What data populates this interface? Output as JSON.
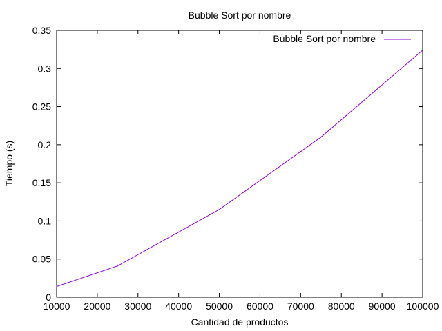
{
  "chart_data": {
    "type": "line",
    "title": "Bubble Sort por nombre",
    "xlabel": "Cantidad de productos",
    "ylabel": "Tiempo (s)",
    "xlim": [
      10000,
      100000
    ],
    "ylim": [
      0,
      0.35
    ],
    "x_ticks": [
      10000,
      20000,
      30000,
      40000,
      50000,
      60000,
      70000,
      80000,
      90000,
      100000
    ],
    "x_tick_labels": [
      "10000",
      "20000",
      "30000",
      "40000",
      "50000",
      "60000",
      "70000",
      "80000",
      "90000",
      "100000"
    ],
    "y_ticks": [
      0,
      0.05,
      0.1,
      0.15,
      0.2,
      0.25,
      0.3,
      0.35
    ],
    "y_tick_labels": [
      "0",
      "0.05",
      "0.1",
      "0.15",
      "0.2",
      "0.25",
      "0.3",
      "0.35"
    ],
    "grid": false,
    "legend_position": "top-right",
    "series": [
      {
        "name": "Bubble Sort por nombre",
        "color": "#9400d3",
        "x": [
          10000,
          25000,
          50000,
          75000,
          100000
        ],
        "y": [
          0.014,
          0.041,
          0.115,
          0.21,
          0.324
        ]
      }
    ]
  }
}
